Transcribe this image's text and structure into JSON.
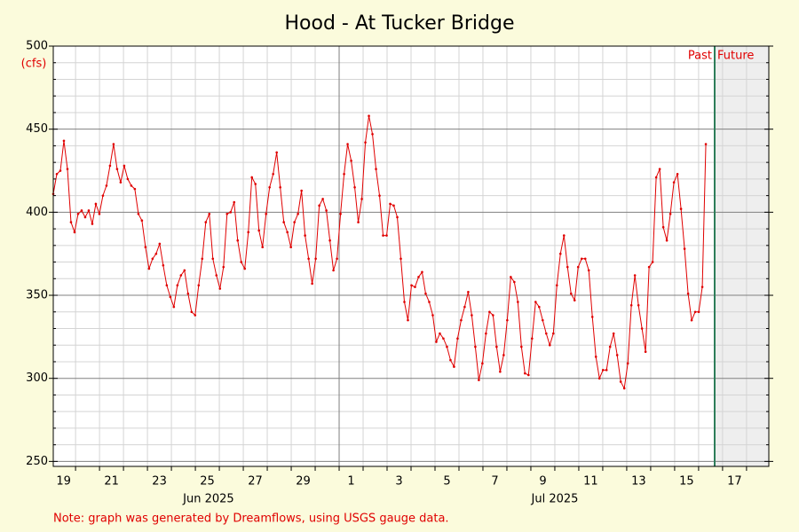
{
  "chart_data": {
    "type": "line",
    "title": "Hood - At Tucker Bridge",
    "y_label": "(cfs)",
    "note": "Note: graph was generated by Dreamflows, using USGS gauge data.",
    "color": "#e00000",
    "grid": true,
    "xlim": [
      19.07,
      48.93
    ],
    "xticks": [
      {
        "value": 19.5,
        "label": "19"
      },
      {
        "value": 21.5,
        "label": "21"
      },
      {
        "value": 23.5,
        "label": "23"
      },
      {
        "value": 25.5,
        "label": "25"
      },
      {
        "value": 27.5,
        "label": "27"
      },
      {
        "value": 29.5,
        "label": "29"
      },
      {
        "value": 31.5,
        "label": "1"
      },
      {
        "value": 33.5,
        "label": "3"
      },
      {
        "value": 35.5,
        "label": "5"
      },
      {
        "value": 37.5,
        "label": "7"
      },
      {
        "value": 39.5,
        "label": "9"
      },
      {
        "value": 41.5,
        "label": "11"
      },
      {
        "value": 43.5,
        "label": "13"
      },
      {
        "value": 45.5,
        "label": "15"
      },
      {
        "value": 47.5,
        "label": "17"
      }
    ],
    "month_ticks": [
      {
        "value": 25.55,
        "label": "Jun 2025"
      },
      {
        "value": 40.0,
        "label": "Jul 2025"
      }
    ],
    "x_minor_ticks": [
      20,
      21,
      22,
      23,
      24,
      25,
      26,
      27,
      28,
      29,
      30,
      31,
      32,
      33,
      34,
      35,
      36,
      37,
      38,
      39,
      40,
      41,
      42,
      43,
      44,
      45,
      46,
      47,
      48
    ],
    "x_major_grid": [
      31
    ],
    "ylim": [
      247,
      500
    ],
    "yticks": [
      250,
      300,
      350,
      400,
      450,
      500
    ],
    "y_minor_ticks": [
      260,
      270,
      280,
      290,
      310,
      320,
      330,
      340,
      360,
      370,
      380,
      390,
      410,
      420,
      430,
      440,
      460,
      470,
      480,
      490
    ],
    "now": {
      "value": 46.67,
      "past_label": "Past",
      "future_label": "Future"
    },
    "x": [
      19.07,
      19.218,
      19.366,
      19.514,
      19.662,
      19.81,
      19.958,
      20.106,
      20.254,
      20.402,
      20.55,
      20.698,
      20.846,
      20.994,
      21.142,
      21.29,
      21.438,
      21.586,
      21.734,
      21.882,
      22.03,
      22.178,
      22.326,
      22.474,
      22.622,
      22.77,
      22.918,
      23.066,
      23.214,
      23.362,
      23.51,
      23.658,
      23.806,
      23.954,
      24.102,
      24.25,
      24.398,
      24.546,
      24.694,
      24.842,
      24.99,
      25.138,
      25.286,
      25.434,
      25.582,
      25.73,
      25.878,
      26.026,
      26.174,
      26.322,
      26.47,
      26.618,
      26.766,
      26.914,
      27.062,
      27.21,
      27.358,
      27.506,
      27.654,
      27.802,
      27.95,
      28.098,
      28.246,
      28.394,
      28.542,
      28.69,
      28.838,
      28.986,
      29.134,
      29.282,
      29.43,
      29.578,
      29.726,
      29.874,
      30.022,
      30.17,
      30.318,
      30.466,
      30.614,
      30.762,
      30.91,
      31.058,
      31.206,
      31.354,
      31.502,
      31.65,
      31.798,
      31.946,
      32.094,
      32.242,
      32.39,
      32.538,
      32.686,
      32.834,
      32.982,
      33.13,
      33.278,
      33.426,
      33.574,
      33.722,
      33.87,
      34.018,
      34.166,
      34.314,
      34.462,
      34.61,
      34.758,
      34.906,
      35.054,
      35.202,
      35.35,
      35.498,
      35.646,
      35.794,
      35.942,
      36.09,
      36.238,
      36.386,
      36.534,
      36.682,
      36.83,
      36.978,
      37.126,
      37.274,
      37.422,
      37.57,
      37.718,
      37.866,
      38.014,
      38.162,
      38.31,
      38.458,
      38.606,
      38.754,
      38.902,
      39.05,
      39.198,
      39.346,
      39.494,
      39.642,
      39.79,
      39.938,
      40.086,
      40.234,
      40.382,
      40.53,
      40.678,
      40.826,
      40.974,
      41.122,
      41.27,
      41.418,
      41.566,
      41.714,
      41.862,
      42.01,
      42.158,
      42.306,
      42.454,
      42.602,
      42.75,
      42.898,
      43.046,
      43.194,
      43.342,
      43.49,
      43.638,
      43.786,
      43.934,
      44.082,
      44.23,
      44.378,
      44.526,
      44.674,
      44.822,
      44.97,
      45.118,
      45.266,
      45.414,
      45.562,
      45.71,
      45.858,
      46.006,
      46.154,
      46.302
    ],
    "values": [
      411,
      423,
      425,
      443,
      426,
      394,
      388,
      399,
      401,
      397,
      401,
      393,
      405,
      399,
      410,
      416,
      428,
      441,
      426,
      418,
      428,
      420,
      416,
      414,
      399,
      395,
      379,
      366,
      372,
      375,
      381,
      368,
      356,
      349,
      343,
      356,
      362,
      365,
      351,
      340,
      338,
      356,
      372,
      394,
      399,
      372,
      362,
      354,
      367,
      399,
      400,
      406,
      383,
      370,
      366,
      388,
      421,
      417,
      389,
      379,
      399,
      415,
      423,
      436,
      415,
      394,
      388,
      379,
      394,
      399,
      413,
      386,
      372,
      357,
      372,
      404,
      408,
      401,
      383,
      365,
      372,
      399,
      423,
      441,
      431,
      415,
      394,
      408,
      442,
      458,
      447,
      426,
      410,
      386,
      386,
      405,
      404,
      397,
      372,
      346,
      335,
      356,
      355,
      361,
      364,
      351,
      346,
      338,
      322,
      327,
      324,
      319,
      311,
      307,
      324,
      335,
      343,
      352,
      338,
      319,
      299,
      309,
      327,
      340,
      338,
      319,
      304,
      314,
      335,
      361,
      358,
      346,
      319,
      303,
      302,
      324,
      346,
      343,
      335,
      327,
      320,
      327,
      356,
      375,
      386,
      367,
      351,
      347,
      367,
      372,
      372,
      365,
      337,
      313,
      300,
      305,
      305,
      319,
      327,
      314,
      298,
      294,
      309,
      344,
      362,
      344,
      330,
      316,
      367,
      370,
      421,
      426,
      391,
      383,
      399,
      418,
      423,
      402,
      378,
      351,
      335,
      340,
      340,
      355,
      441
    ]
  }
}
